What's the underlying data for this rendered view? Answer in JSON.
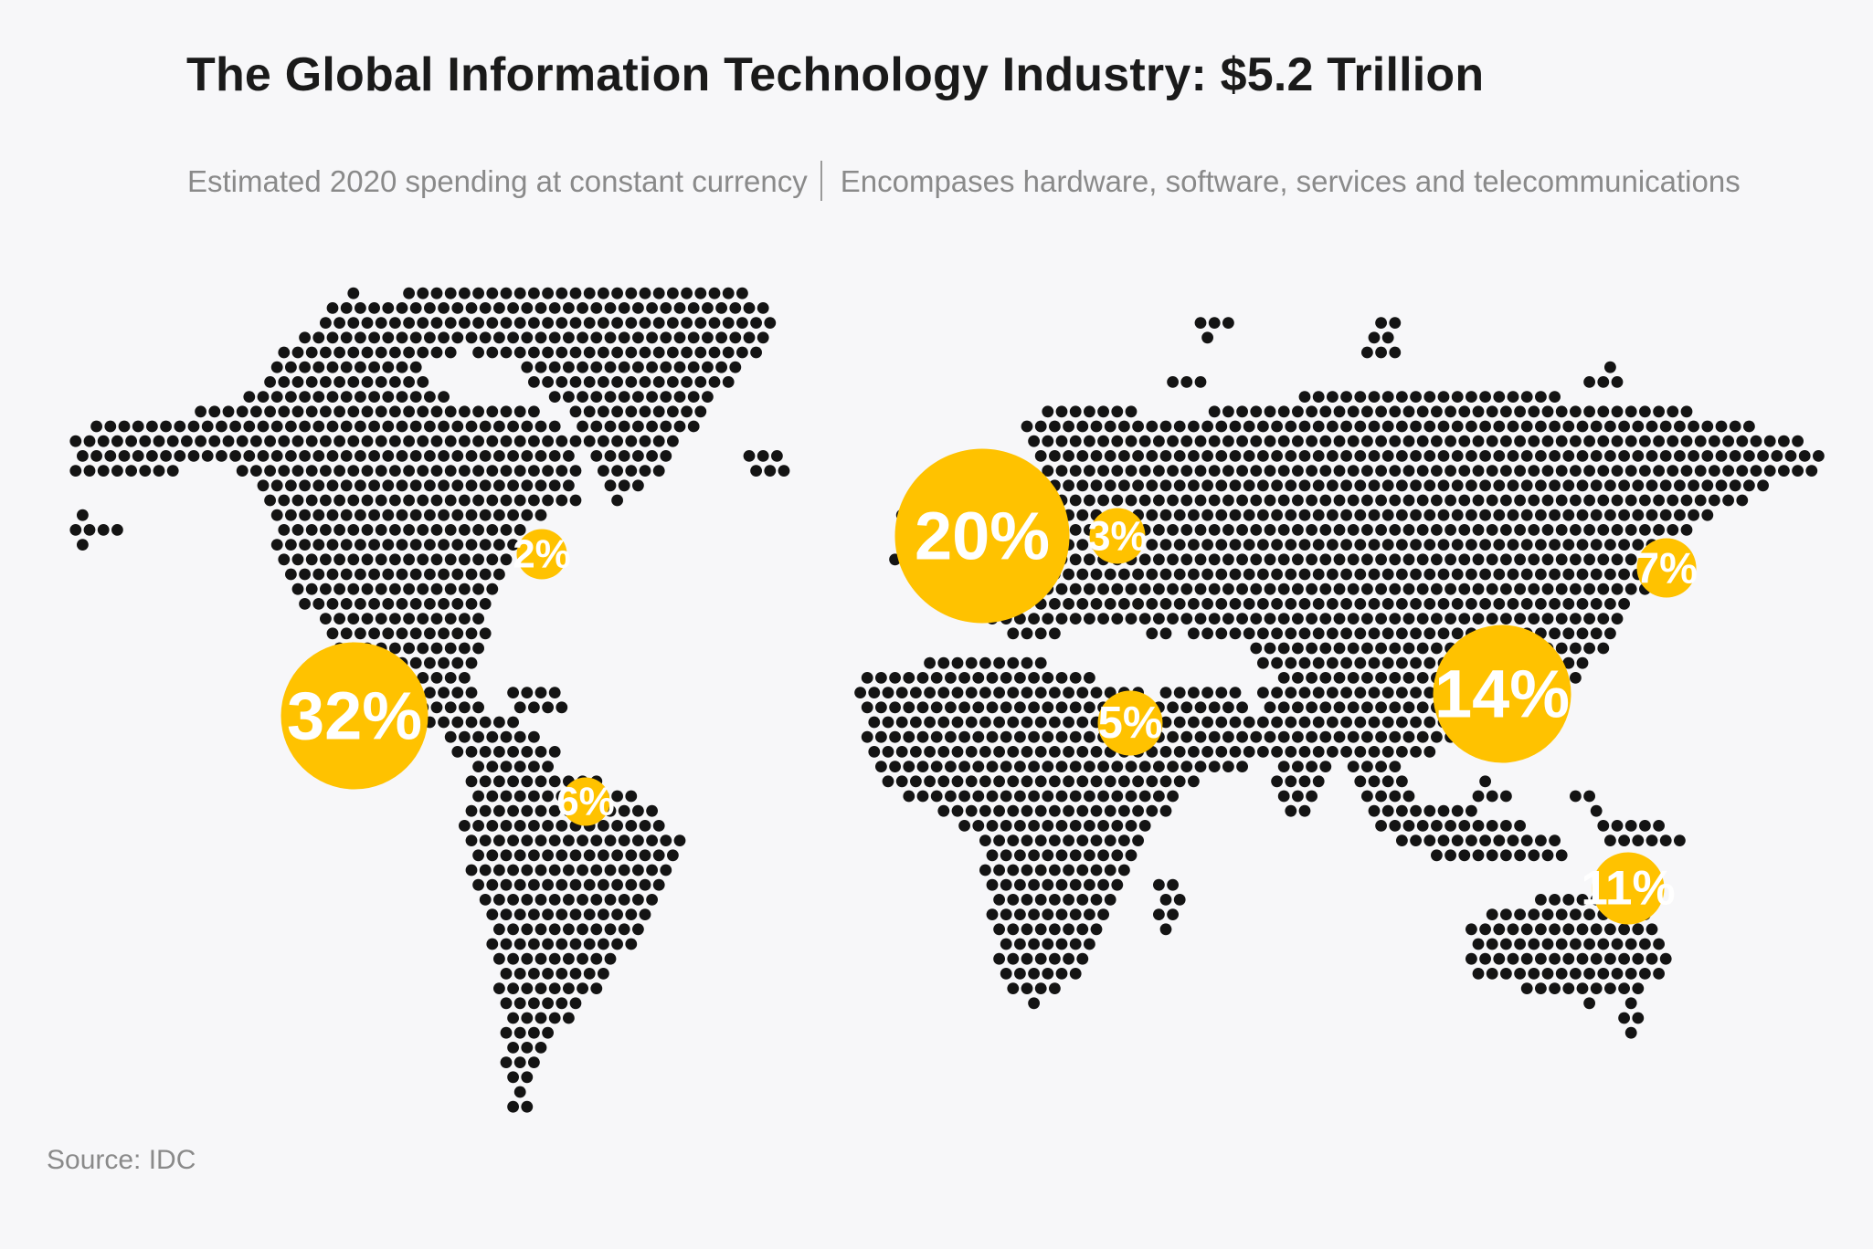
{
  "title": "The Global Information Technology Industry: $5.2 Trillion",
  "subtitle": {
    "left": "Estimated 2020 spending at constant currency",
    "right": "Encompases hardware, software, services and telecommunications"
  },
  "source": "Source: IDC",
  "colors": {
    "background": "#f7f7f9",
    "dots": "#141414",
    "bubble": "#ffc200",
    "bubble_text": "#ffffff",
    "title": "#1a1a1a",
    "subtitle": "#8a8a8a"
  },
  "chart_data": {
    "type": "bubble-map",
    "value_unit": "%",
    "regions": [
      {
        "label": "32%",
        "value": 32
      },
      {
        "label": "2%",
        "value": 2
      },
      {
        "label": "6%",
        "value": 6
      },
      {
        "label": "20%",
        "value": 20
      },
      {
        "label": "3%",
        "value": 3
      },
      {
        "label": "5%",
        "value": 5
      },
      {
        "label": "14%",
        "value": 14
      },
      {
        "label": "7%",
        "value": 7
      },
      {
        "label": "11%",
        "value": 11
      }
    ]
  }
}
